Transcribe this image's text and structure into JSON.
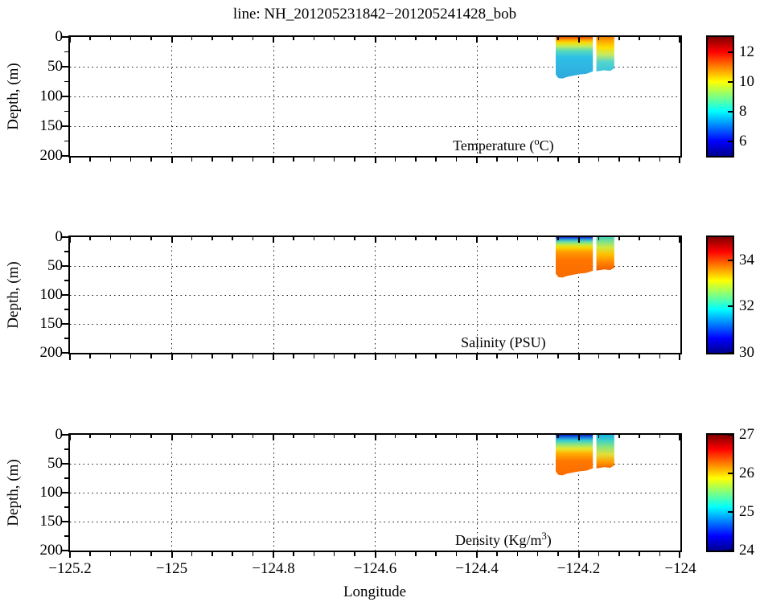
{
  "figure": {
    "background": "#ffffff",
    "accent_black": "#000000"
  },
  "chart_data": {
    "type": "heatmap",
    "title": "line: NH_201205231842−201205241428_bob",
    "layout": {
      "grid": true,
      "colorbar_position": "right",
      "n_panels": 3
    },
    "x_axis": {
      "label": "Longitude",
      "range": [
        -125.2,
        -124.0
      ],
      "major_ticks": [
        -125.2,
        -125.0,
        -124.8,
        -124.6,
        -124.4,
        -124.2,
        -124.0
      ],
      "tick_labels": [
        "−125.2",
        "−125",
        "−124.8",
        "−124.6",
        "−124.4",
        "−124.2",
        "−124"
      ],
      "minor_step": 0.04
    },
    "y_axis": {
      "label": "Depth, (m)",
      "range": [
        0,
        200
      ],
      "major_ticks": [
        0,
        50,
        100,
        150,
        200
      ],
      "tick_labels": [
        "0",
        "50",
        "100",
        "150",
        "200"
      ],
      "minor_step": 25,
      "gridlines": [
        50,
        100,
        150
      ]
    },
    "segments": [
      {
        "lon_range": [
          -124.245,
          -124.172
        ],
        "bottom_profile_m": [
          [
            -124.245,
            63
          ],
          [
            -124.24,
            69
          ],
          [
            -124.232,
            70
          ],
          [
            -124.222,
            67
          ],
          [
            -124.21,
            65
          ],
          [
            -124.198,
            63
          ],
          [
            -124.185,
            62
          ],
          [
            -124.172,
            58
          ]
        ]
      },
      {
        "lon_range": [
          -124.165,
          -124.13
        ],
        "bottom_profile_m": [
          [
            -124.165,
            58
          ],
          [
            -124.15,
            56
          ],
          [
            -124.138,
            57
          ],
          [
            -124.13,
            53
          ]
        ]
      }
    ],
    "panels": [
      {
        "id": "temperature",
        "label": {
          "pre": "Temperature (",
          "sup": "o",
          "post": "C)"
        },
        "clim": [
          5,
          13
        ],
        "colorbar_ticks": [
          6,
          8,
          10,
          12
        ],
        "gradients": [
          [
            [
              0,
              "#d84a00"
            ],
            [
              4,
              "#fb9100"
            ],
            [
              9,
              "#ffd800"
            ],
            [
              15,
              "#c6ee55"
            ],
            [
              24,
              "#53d8c0"
            ],
            [
              34,
              "#2fc0e6"
            ],
            [
              70,
              "#2fa9dd"
            ]
          ],
          [
            [
              0,
              "#ee7c00"
            ],
            [
              8,
              "#ffae00"
            ],
            [
              18,
              "#ffdf00"
            ],
            [
              30,
              "#c2e965"
            ],
            [
              42,
              "#55d5cd"
            ],
            [
              58,
              "#3cc2de"
            ]
          ]
        ]
      },
      {
        "id": "salinity",
        "label": {
          "pre": "Salinity (PSU)",
          "sup": "",
          "post": ""
        },
        "clim": [
          30,
          35
        ],
        "colorbar_ticks": [
          30,
          32,
          34
        ],
        "gradients": [
          [
            [
              0,
              "#1026cc"
            ],
            [
              4,
              "#2f9fd8"
            ],
            [
              8,
              "#62d9a8"
            ],
            [
              13,
              "#c2ea48"
            ],
            [
              18,
              "#f7d900"
            ],
            [
              26,
              "#ff9b00"
            ],
            [
              40,
              "#ff7400"
            ],
            [
              70,
              "#f96c00"
            ]
          ],
          [
            [
              0,
              "#45d0bb"
            ],
            [
              8,
              "#7fe18c"
            ],
            [
              18,
              "#cfe93e"
            ],
            [
              30,
              "#ffc000"
            ],
            [
              45,
              "#ff8000"
            ],
            [
              58,
              "#ef5a00"
            ]
          ]
        ]
      },
      {
        "id": "density",
        "label": {
          "pre": "Density (Kg/m",
          "sup": "3",
          "post": ")"
        },
        "clim": [
          24,
          27
        ],
        "colorbar_ticks": [
          24,
          25,
          26,
          27
        ],
        "gradients": [
          [
            [
              0,
              "#0a1fc4"
            ],
            [
              5,
              "#1a83e0"
            ],
            [
              10,
              "#35cfd0"
            ],
            [
              17,
              "#8fe37c"
            ],
            [
              24,
              "#e6e92e"
            ],
            [
              32,
              "#ffb000"
            ],
            [
              45,
              "#ff7800"
            ],
            [
              70,
              "#fa6c00"
            ]
          ],
          [
            [
              0,
              "#18b2e5"
            ],
            [
              10,
              "#3ed2c6"
            ],
            [
              22,
              "#93e476"
            ],
            [
              34,
              "#e2de38"
            ],
            [
              47,
              "#ff9d00"
            ],
            [
              58,
              "#f26000"
            ]
          ]
        ]
      }
    ],
    "colorbar_gradient": [
      [
        0,
        "#00008f"
      ],
      [
        0.125,
        "#0000ff"
      ],
      [
        0.375,
        "#00ffff"
      ],
      [
        0.625,
        "#ffff00"
      ],
      [
        0.875,
        "#ff0000"
      ],
      [
        1,
        "#800000"
      ]
    ]
  }
}
